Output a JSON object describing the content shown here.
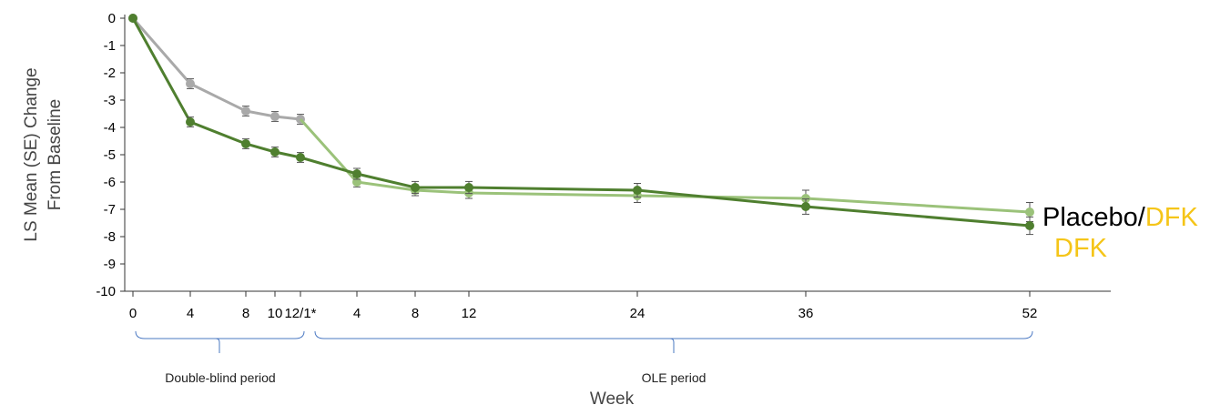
{
  "chart_data": {
    "type": "line",
    "ylabel_line1": "LS Mean (SE) Change",
    "ylabel_line2": "From Baseline",
    "xlabel": "Week",
    "ylim": [
      -10,
      0
    ],
    "yticks": [
      "0",
      "-1",
      "-2",
      "-3",
      "-4",
      "-5",
      "-6",
      "-7",
      "-8",
      "-9",
      "-10"
    ],
    "xticks": [
      "0",
      "4",
      "8",
      "10",
      "12/1*",
      "4",
      "8",
      "12",
      "24",
      "36",
      "52"
    ],
    "periods": [
      {
        "label": "Double-blind period"
      },
      {
        "label": "OLE period"
      }
    ],
    "series": [
      {
        "color": "#a9a9a9",
        "x_index": [
          0,
          1,
          2,
          3,
          4
        ],
        "values": [
          0,
          -2.4,
          -3.4,
          -3.6,
          -3.7
        ],
        "se": [
          0,
          0.18,
          0.18,
          0.18,
          0.18
        ]
      },
      {
        "color": "#9bc27a",
        "x_index": [
          4,
          5,
          6,
          7,
          8,
          9,
          10
        ],
        "values": [
          -3.7,
          -6.0,
          -6.3,
          -6.4,
          -6.5,
          -6.6,
          -7.1
        ],
        "se": [
          0,
          0.18,
          0.2,
          0.2,
          0.25,
          0.3,
          0.35
        ],
        "connect_from_previous": true
      },
      {
        "color": "#4f7f2f",
        "x_index": [
          0,
          1,
          2,
          3,
          4,
          5,
          6,
          7,
          8,
          9,
          10
        ],
        "values": [
          0,
          -3.8,
          -4.6,
          -4.9,
          -5.1,
          -5.7,
          -6.2,
          -6.2,
          -6.3,
          -6.9,
          -7.6
        ],
        "se": [
          0,
          0.18,
          0.18,
          0.18,
          0.18,
          0.2,
          0.22,
          0.22,
          0.25,
          0.28,
          0.32
        ]
      }
    ],
    "legend": [
      {
        "parts": [
          {
            "text": "Placebo/",
            "color": "#000000"
          },
          {
            "text": "DFK",
            "color": "#f5c518"
          }
        ]
      },
      {
        "parts": [
          {
            "text": "DFK",
            "color": "#f5c518"
          }
        ]
      }
    ]
  }
}
